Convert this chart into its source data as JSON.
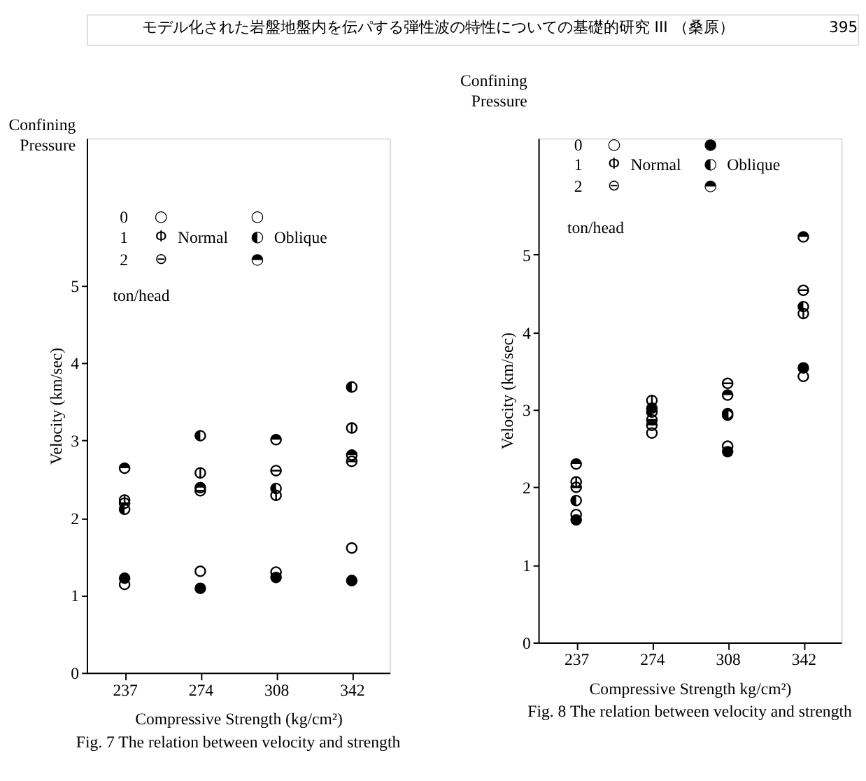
{
  "chart_data": [
    {
      "type": "scatter",
      "title": "Fig. 7  The relation between velocity and strength",
      "xlabel": "Compressive Strength  (kg/cm²)",
      "ylabel": "Velocity  (km/sec)",
      "annotations": [
        "モデル化された岩盤地盤内を伝パする弾性波の特性についての基礎的研究 III （桑原）",
        "395",
        "Confining Pressure",
        "0",
        "1",
        "2",
        "Normal",
        "Oblique",
        "ton/head",
        "○",
        "Φ",
        "⊖",
        "○",
        "◐",
        "◓"
      ],
      "categories": [
        "237",
        "274",
        "308",
        "342"
      ],
      "ylim": [
        0,
        6.9
      ],
      "yticks": [
        0,
        1,
        2,
        3,
        4,
        5
      ],
      "grid": false,
      "marker": "circle",
      "series": [
        {
          "color": "#000000",
          "values": [
            1.14,
            1.31,
            1.3,
            1.61
          ]
        },
        {
          "color": "#000000",
          "values": [
            2.23,
            2.58,
            2.29,
            3.16
          ]
        },
        {
          "color": "#000000",
          "values": [
            2.19,
            2.35,
            2.61,
            2.73
          ]
        },
        {
          "color": "#000000",
          "values": [
            1.22,
            1.09,
            1.23,
            1.19
          ]
        },
        {
          "color": "#000000",
          "values": [
            2.11,
            3.06,
            2.38,
            3.69
          ]
        },
        {
          "color": "#000000",
          "values": [
            2.64,
            2.39,
            3.01,
            2.81
          ]
        }
      ]
    },
    {
      "type": "scatter",
      "title": "Fig. 8  The relation between velocity and strength",
      "xlabel": "Compressive Strength  kg/cm²)",
      "ylabel": "Velocity  (km/sec)",
      "annotations": [
        "Confining Pressure",
        "0",
        "1",
        "2",
        "Normal",
        "Oblique",
        "ton/head",
        "○",
        "Φ",
        "⊖",
        "●",
        "◐",
        "◓"
      ],
      "categories": [
        "237",
        "274",
        "308",
        "342"
      ],
      "ylim": [
        0,
        6.5
      ],
      "yticks": [
        0,
        1,
        2,
        3,
        4,
        5
      ],
      "grid": false,
      "marker": "circle",
      "series": [
        {
          "color": "#000000",
          "values": [
            1.65,
            2.7,
            2.53,
            3.43
          ]
        },
        {
          "color": "#000000",
          "values": [
            2.07,
            3.12,
            2.93,
            4.24
          ]
        },
        {
          "color": "#000000",
          "values": [
            2.0,
            2.87,
            3.34,
            4.54
          ]
        },
        {
          "color": "#000000",
          "values": [
            1.58,
            3.02,
            2.46,
            3.54
          ]
        },
        {
          "color": "#000000",
          "values": [
            1.83,
            2.97,
            2.95,
            4.33
          ]
        },
        {
          "color": "#000000",
          "values": [
            2.3,
            2.8,
            3.19,
            5.23
          ]
        }
      ]
    }
  ]
}
